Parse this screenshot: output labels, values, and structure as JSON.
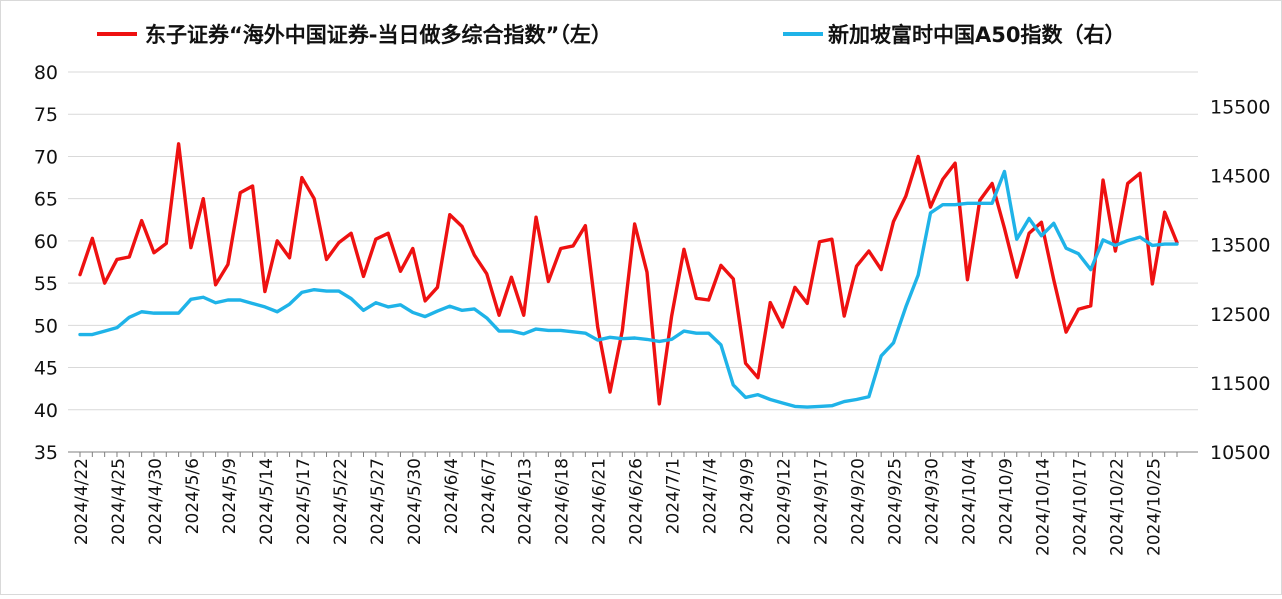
{
  "chart_data": {
    "type": "line",
    "legend": {
      "position": "top",
      "entries": [
        "东子证券“海外中国证券-当日做多综合指数”（左）",
        "新加坡富时中国A50指数（右）"
      ]
    },
    "x_tick_labels": [
      "2024/4/22",
      "2024/4/25",
      "2024/4/30",
      "2024/5/6",
      "2024/5/9",
      "2024/5/14",
      "2024/5/17",
      "2024/5/22",
      "2024/5/27",
      "2024/5/30",
      "2024/6/4",
      "2024/6/7",
      "2024/6/13",
      "2024/6/18",
      "2024/6/21",
      "2024/6/26",
      "2024/7/1",
      "2024/7/4",
      "2024/9/9",
      "2024/9/12",
      "2024/9/17",
      "2024/9/20",
      "2024/9/25",
      "2024/9/30",
      "2024/10/4",
      "2024/10/9",
      "2024/10/14",
      "2024/10/17",
      "2024/10/22",
      "2024/10/25"
    ],
    "left_axis": {
      "ylim": [
        35,
        80
      ],
      "ticks": [
        35,
        40,
        45,
        50,
        55,
        60,
        65,
        70,
        75,
        80
      ]
    },
    "right_axis": {
      "ylim": [
        10500,
        16000
      ],
      "ticks": [
        10500,
        11500,
        12500,
        13500,
        14500,
        15500
      ]
    },
    "grid": true,
    "series": [
      {
        "name": "东子证券“海外中国证券-当日做多综合指数”（左）",
        "axis": "left",
        "color": "#ee1111",
        "values": [
          56,
          60.3,
          55,
          57.8,
          58.1,
          62.4,
          58.6,
          59.7,
          71.5,
          59.2,
          65,
          54.8,
          57.2,
          65.7,
          66.5,
          54,
          60,
          58,
          67.5,
          65,
          57.8,
          59.8,
          60.9,
          55.8,
          60.2,
          60.9,
          56.4,
          59.1,
          52.9,
          54.5,
          63.1,
          61.7,
          58.3,
          56.1,
          51.2,
          55.7,
          51.2,
          62.8,
          55.2,
          59.1,
          59.4,
          61.8,
          49.8,
          42.1,
          49.4,
          62,
          56.3,
          40.7,
          51.1,
          59,
          53.2,
          53,
          57.1,
          55.5,
          45.5,
          43.8,
          52.7,
          49.8,
          54.5,
          52.6,
          59.9,
          60.2,
          51.1,
          57,
          58.8,
          56.6,
          62.3,
          65.3,
          70,
          64,
          67.3,
          69.2,
          55.4,
          64.8,
          66.8,
          61.5,
          55.7,
          60.9,
          62.2,
          55.4,
          49.2,
          51.9,
          52.3,
          67.2,
          58.8,
          66.8,
          68,
          54.9,
          63.4,
          59.8
        ]
      },
      {
        "name": "新加坡富时中国A50指数（右）",
        "axis": "right",
        "color": "#1fb3e8",
        "values": [
          12200,
          12200,
          12250,
          12300,
          12450,
          12530,
          12510,
          12510,
          12510,
          12710,
          12740,
          12660,
          12700,
          12700,
          12650,
          12600,
          12530,
          12640,
          12810,
          12850,
          12830,
          12830,
          12720,
          12550,
          12660,
          12600,
          12630,
          12520,
          12460,
          12540,
          12610,
          12550,
          12570,
          12440,
          12250,
          12250,
          12210,
          12280,
          12260,
          12260,
          12240,
          12220,
          12120,
          12160,
          12140,
          12150,
          12130,
          12100,
          12130,
          12250,
          12220,
          12220,
          12050,
          11470,
          11290,
          11330,
          11260,
          11210,
          11160,
          11150,
          11160,
          11170,
          11230,
          11260,
          11300,
          11890,
          12080,
          12600,
          13060,
          13960,
          14080,
          14080,
          14100,
          14100,
          14100,
          14560,
          13580,
          13880,
          13630,
          13810,
          13450,
          13370,
          13140,
          13570,
          13490,
          13560,
          13610,
          13490,
          13510,
          13510
        ]
      }
    ]
  }
}
